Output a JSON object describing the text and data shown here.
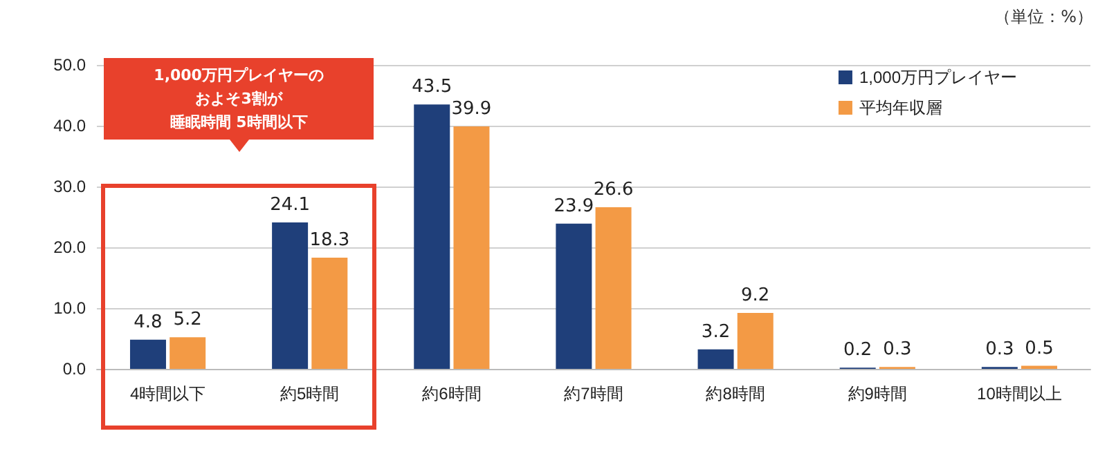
{
  "chart_data": {
    "type": "bar",
    "categories": [
      "4時間以下",
      "約5時間",
      "約6時間",
      "約7時間",
      "約8時間",
      "約9時間",
      "10時間以上"
    ],
    "series": [
      {
        "name": "1,000万円プレイヤー",
        "color": "#1f3f7a",
        "values": [
          4.8,
          24.1,
          43.5,
          23.9,
          3.2,
          0.2,
          0.3
        ]
      },
      {
        "name": "平均年収層",
        "color": "#f39a45",
        "values": [
          5.2,
          18.3,
          39.9,
          26.6,
          9.2,
          0.3,
          0.5
        ]
      }
    ],
    "ylim": [
      0,
      50
    ],
    "yticks": [
      {
        "value": 0,
        "label": "0.0"
      },
      {
        "value": 10,
        "label": "10.0"
      },
      {
        "value": 20,
        "label": "20.0"
      },
      {
        "value": 30,
        "label": "30.0"
      },
      {
        "value": 40,
        "label": "40.0"
      },
      {
        "value": 50,
        "label": "50.0"
      }
    ],
    "grid": "y",
    "legend": "top right",
    "data_labels": true,
    "annotations": [
      "（単位：%）",
      "1,000万円プレイヤーの",
      "およそ3割が",
      "睡眠時間 5時間以下"
    ]
  }
}
